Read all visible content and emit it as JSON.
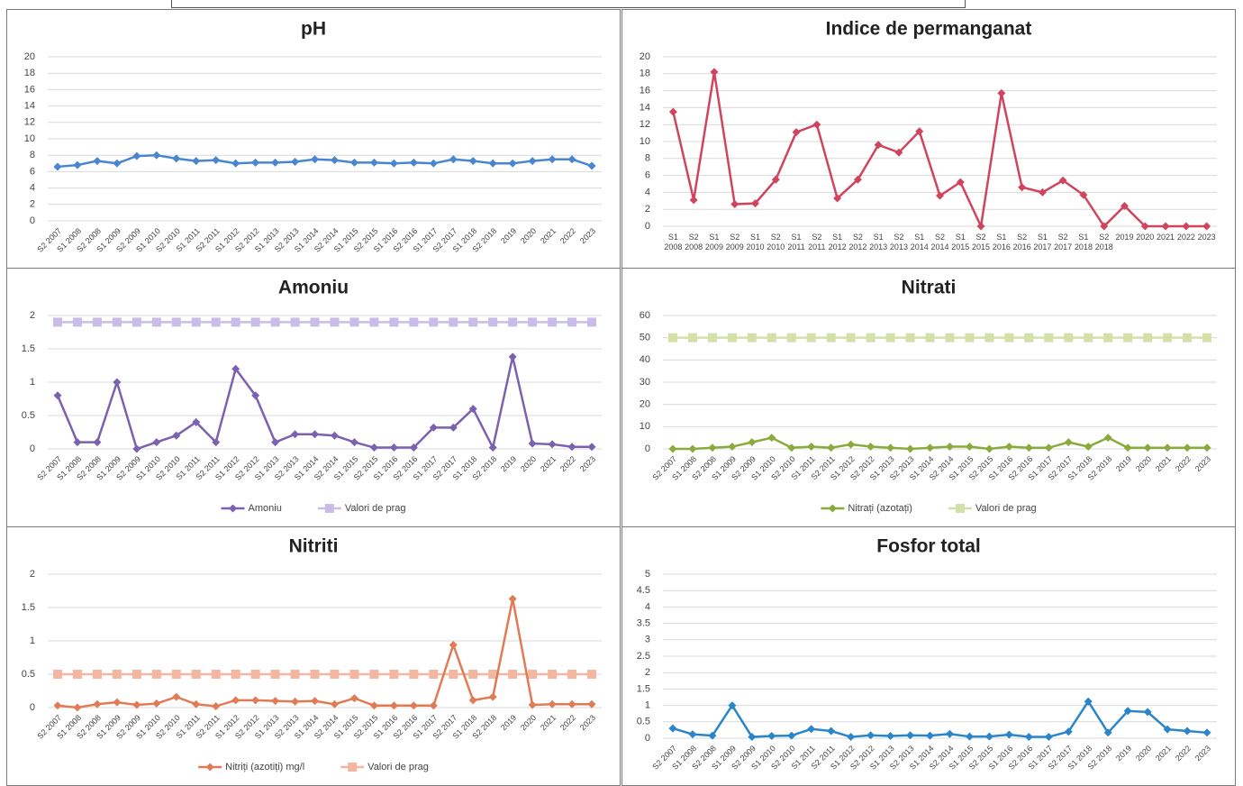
{
  "chart_data": [
    {
      "type": "line",
      "title": "pH",
      "categories": [
        "S2 2007",
        "S1 2008",
        "S2 2008",
        "S1 2009",
        "S2 2009",
        "S1 2010",
        "S2 2010",
        "S1 2011",
        "S2 2011",
        "S1 2012",
        "S2 2012",
        "S1 2013",
        "S2 2013",
        "S1 2014",
        "S2 2014",
        "S1 2015",
        "S2 2015",
        "S1 2016",
        "S2 2016",
        "S1 2017",
        "S2 2017",
        "S1 2018",
        "S2 2018",
        "2019",
        "2020",
        "2021",
        "2022",
        "2023"
      ],
      "series": [
        {
          "color": "#4a86d0",
          "marker": "diamond",
          "values": [
            6.6,
            6.8,
            7.3,
            7.0,
            7.9,
            8.0,
            7.6,
            7.3,
            7.4,
            7.0,
            7.1,
            7.1,
            7.2,
            7.5,
            7.4,
            7.1,
            7.1,
            7.0,
            7.1,
            7.0,
            7.5,
            7.3,
            7.0,
            7.0,
            7.3,
            7.5,
            7.5,
            6.7
          ]
        }
      ],
      "ylim": [
        0,
        20
      ],
      "yticks": [
        0,
        2,
        4,
        6,
        8,
        10,
        12,
        14,
        16,
        18,
        20
      ],
      "grid": true
    },
    {
      "type": "line",
      "title": "Indice de permanganat",
      "categories": [
        "S1 2008",
        "S2 2008",
        "S1 2009",
        "S2 2009",
        "S1 2010",
        "S2 2010",
        "S1 2011",
        "S2 2011",
        "S1 2012",
        "S2 2012",
        "S1 2013",
        "S2 2013",
        "S1 2014",
        "S2 2014",
        "S1 2015",
        "S2 2015",
        "S1 2016",
        "S2 2016",
        "S1 2017",
        "S2 2017",
        "S1 2018",
        "S2 2018",
        "2019",
        "2020",
        "2021",
        "2022",
        "2023"
      ],
      "series": [
        {
          "color": "#d0455e",
          "marker": "diamond",
          "values": [
            13.5,
            3.1,
            18.2,
            2.6,
            2.7,
            5.5,
            11.1,
            12.0,
            3.3,
            5.5,
            9.6,
            8.7,
            11.2,
            3.6,
            5.2,
            0,
            15.7,
            4.6,
            4.0,
            5.4,
            3.7,
            0,
            2.4,
            0,
            0,
            0,
            0
          ]
        }
      ],
      "ylim": [
        0,
        20
      ],
      "yticks": [
        0,
        2,
        4,
        6,
        8,
        10,
        12,
        14,
        16,
        18,
        20
      ],
      "grid": true
    },
    {
      "type": "line",
      "title": "Amoniu",
      "categories": [
        "S2 2007",
        "S1 2008",
        "S2 2008",
        "S1 2009",
        "S2 2009",
        "S1 2010",
        "S2 2010",
        "S1 2011",
        "S2 2011",
        "S1 2012",
        "S2 2012",
        "S1 2013",
        "S2 2013",
        "S1 2014",
        "S2 2014",
        "S1 2015",
        "S2 2015",
        "S1 2016",
        "S2 2016",
        "S1 2017",
        "S2 2017",
        "S1 2018",
        "S2 2018",
        "2019",
        "2020",
        "2021",
        "2022",
        "2023"
      ],
      "series": [
        {
          "name": "Amoniu",
          "color": "#7a62b0",
          "marker": "diamond",
          "values": [
            0.8,
            0.1,
            0.1,
            1.0,
            0.0,
            0.1,
            0.2,
            0.4,
            0.1,
            1.2,
            0.8,
            0.1,
            0.22,
            0.22,
            0.2,
            0.1,
            0.02,
            0.02,
            0.02,
            0.32,
            0.32,
            0.6,
            0.02,
            1.38,
            0.08,
            0.07,
            0.03,
            0.03
          ]
        },
        {
          "name": "Valori de prag",
          "color": "#c9bde8",
          "marker": "square",
          "values": [
            1.9,
            1.9,
            1.9,
            1.9,
            1.9,
            1.9,
            1.9,
            1.9,
            1.9,
            1.9,
            1.9,
            1.9,
            1.9,
            1.9,
            1.9,
            1.9,
            1.9,
            1.9,
            1.9,
            1.9,
            1.9,
            1.9,
            1.9,
            1.9,
            1.9,
            1.9,
            1.9,
            1.9
          ]
        }
      ],
      "ylim": [
        0,
        2
      ],
      "yticks": [
        0,
        0.5,
        1,
        1.5,
        2
      ],
      "grid": true,
      "legend": "bottom"
    },
    {
      "type": "line",
      "title": "Nitrati",
      "categories": [
        "S2 2007",
        "S1 2008",
        "S2 2008",
        "S1 2009",
        "S2 2009",
        "S1 2010",
        "S2 2010",
        "S1 2011",
        "S2 2011",
        "S1 2012",
        "S2 2012",
        "S1 2013",
        "S2 2013",
        "S1 2014",
        "S2 2014",
        "S1 2015",
        "S2 2015",
        "S1 2016",
        "S2 2016",
        "S1 2017",
        "S2 2017",
        "S1 2018",
        "S2 2018",
        "2019",
        "2020",
        "2021",
        "2022",
        "2023"
      ],
      "series": [
        {
          "name": "Nitrați (azotați)",
          "color": "#8aab3c",
          "marker": "diamond",
          "values": [
            0,
            0,
            0.5,
            1,
            3,
            5,
            0.5,
            1,
            0.5,
            2,
            1,
            0.5,
            0,
            0.5,
            1,
            1,
            0,
            1,
            0.5,
            0.5,
            3,
            1,
            5,
            0.5,
            0.5,
            0.5,
            0.5,
            0.5
          ]
        },
        {
          "name": "Valori de prag",
          "color": "#d3e0a8",
          "marker": "square",
          "values": [
            50,
            50,
            50,
            50,
            50,
            50,
            50,
            50,
            50,
            50,
            50,
            50,
            50,
            50,
            50,
            50,
            50,
            50,
            50,
            50,
            50,
            50,
            50,
            50,
            50,
            50,
            50,
            50
          ]
        }
      ],
      "ylim": [
        0,
        60
      ],
      "yticks": [
        0,
        10,
        20,
        30,
        40,
        50,
        60
      ],
      "grid": true,
      "legend": "bottom"
    },
    {
      "type": "line",
      "title": "Nitriti",
      "categories": [
        "S2 2007",
        "S1 2008",
        "S2 2008",
        "S1 2009",
        "S2 2009",
        "S1 2010",
        "S2 2010",
        "S1 2011",
        "S2 2011",
        "S1 2012",
        "S2 2012",
        "S1 2013",
        "S2 2013",
        "S1 2014",
        "S2 2014",
        "S1 2015",
        "S2 2015",
        "S1 2016",
        "S2 2016",
        "S1 2017",
        "S2 2017",
        "S1 2018",
        "S2 2018",
        "2019",
        "2020",
        "2021",
        "2022",
        "2023"
      ],
      "series": [
        {
          "name": "Nitriți (azotiți) mg/l",
          "color": "#e07b55",
          "marker": "diamond",
          "values": [
            0.03,
            0.0,
            0.05,
            0.08,
            0.04,
            0.06,
            0.16,
            0.05,
            0.02,
            0.11,
            0.11,
            0.1,
            0.09,
            0.1,
            0.05,
            0.14,
            0.03,
            0.03,
            0.03,
            0.03,
            0.94,
            0.11,
            0.16,
            1.63,
            0.04,
            0.05,
            0.05,
            0.05
          ]
        },
        {
          "name": "Valori de prag",
          "color": "#f3b7a1",
          "marker": "square",
          "values": [
            0.5,
            0.5,
            0.5,
            0.5,
            0.5,
            0.5,
            0.5,
            0.5,
            0.5,
            0.5,
            0.5,
            0.5,
            0.5,
            0.5,
            0.5,
            0.5,
            0.5,
            0.5,
            0.5,
            0.5,
            0.5,
            0.5,
            0.5,
            0.5,
            0.5,
            0.5,
            0.5,
            0.5
          ]
        }
      ],
      "ylim": [
        0,
        2
      ],
      "yticks": [
        0,
        0.5,
        1,
        1.5,
        2
      ],
      "grid": true,
      "legend": "bottom"
    },
    {
      "type": "line",
      "title": "Fosfor total",
      "categories": [
        "S2 2007",
        "S1 2008",
        "S2 2008",
        "S1 2009",
        "S2 2009",
        "S1 2010",
        "S2 2010",
        "S1 2011",
        "S2 2011",
        "S1 2012",
        "S2 2012",
        "S1 2013",
        "S2 2013",
        "S1 2014",
        "S2 2014",
        "S1 2015",
        "S2 2015",
        "S1 2016",
        "S2 2016",
        "S1 2017",
        "S2 2017",
        "S1 2018",
        "S2 2018",
        "2019",
        "2020",
        "2021",
        "2022",
        "2023"
      ],
      "series": [
        {
          "color": "#2b86c9",
          "marker": "diamond",
          "values": [
            0.3,
            0.12,
            0.08,
            1.0,
            0.04,
            0.07,
            0.08,
            0.28,
            0.22,
            0.04,
            0.09,
            0.07,
            0.09,
            0.08,
            0.13,
            0.05,
            0.05,
            0.11,
            0.04,
            0.04,
            0.2,
            1.12,
            0.17,
            0.83,
            0.8,
            0.27,
            0.22,
            0.17
          ]
        }
      ],
      "ylim": [
        0,
        5
      ],
      "yticks": [
        0,
        0.5,
        1,
        1.5,
        2,
        2.5,
        3,
        3.5,
        4,
        4.5,
        5
      ],
      "grid": true
    }
  ]
}
